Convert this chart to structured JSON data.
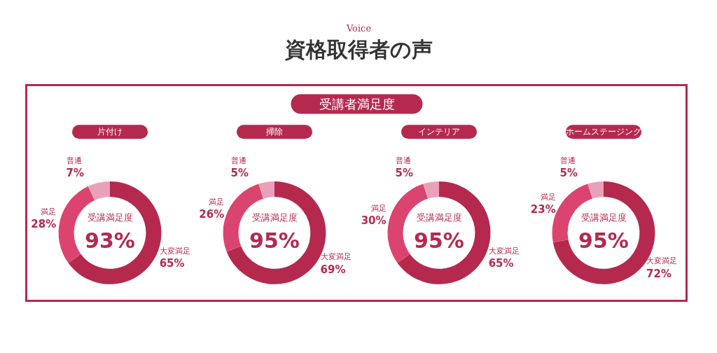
{
  "chart_data": [
    {
      "type": "other",
      "subtitle": "Voice",
      "title": "資格取得者の声",
      "annotations": [
        "受講者満足度"
      ]
    },
    {
      "type": "donut",
      "title": "片付け",
      "categories": [
        "大変満足",
        "満足",
        "普通"
      ],
      "values": [
        65,
        28,
        7
      ],
      "value_labels": [
        "65%",
        "28%",
        "7%"
      ],
      "colors": [
        "#b5294f",
        "#dc4470",
        "#e9a1b9"
      ],
      "annotations": [
        "受講満足度",
        "93%"
      ]
    },
    {
      "type": "donut",
      "title": "掃除",
      "categories": [
        "大変満足",
        "満足",
        "普通"
      ],
      "values": [
        69,
        26,
        5
      ],
      "value_labels": [
        "69%",
        "26%",
        "5%"
      ],
      "colors": [
        "#b5294f",
        "#dc4470",
        "#e9a1b9"
      ],
      "annotations": [
        "受講満足度",
        "95%"
      ]
    },
    {
      "type": "donut",
      "title": "インテリア",
      "categories": [
        "大変満足",
        "満足",
        "普通"
      ],
      "values": [
        65,
        30,
        5
      ],
      "value_labels": [
        "65%",
        "30%",
        "5%"
      ],
      "colors": [
        "#b5294f",
        "#dc4470",
        "#e9a1b9"
      ],
      "annotations": [
        "受講満足度",
        "95%"
      ]
    },
    {
      "type": "donut",
      "title": "ホームステージング",
      "categories": [
        "大変満足",
        "満足",
        "普通"
      ],
      "values": [
        72,
        23,
        5
      ],
      "value_labels": [
        "72%",
        "23%",
        "5%"
      ],
      "colors": [
        "#b5294f",
        "#dc4470",
        "#e9a1b9"
      ],
      "annotations": [
        "受講満足度",
        "95%"
      ]
    }
  ]
}
